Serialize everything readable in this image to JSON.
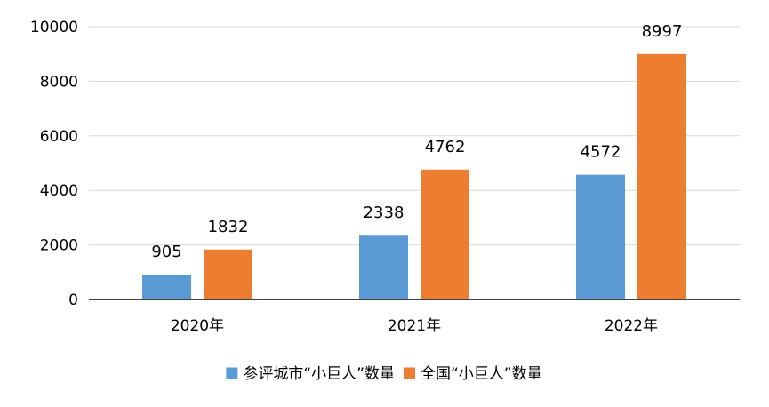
{
  "chart_data": {
    "type": "bar",
    "categories": [
      "2020年",
      "2021年",
      "2022年"
    ],
    "series": [
      {
        "name": "参评城市“小巨人”数量",
        "values": [
          905,
          2338,
          4572
        ],
        "color": "#5B9BD5"
      },
      {
        "name": "全国“小巨人”数量",
        "values": [
          1832,
          4762,
          8997
        ],
        "color": "#ED7D31"
      }
    ],
    "ylim": [
      0,
      10000
    ],
    "yticks": [
      0,
      2000,
      4000,
      6000,
      8000,
      10000
    ],
    "grid": true,
    "legend_position": "bottom",
    "data_labels": true,
    "xlabel": "",
    "ylabel": "",
    "title": ""
  }
}
